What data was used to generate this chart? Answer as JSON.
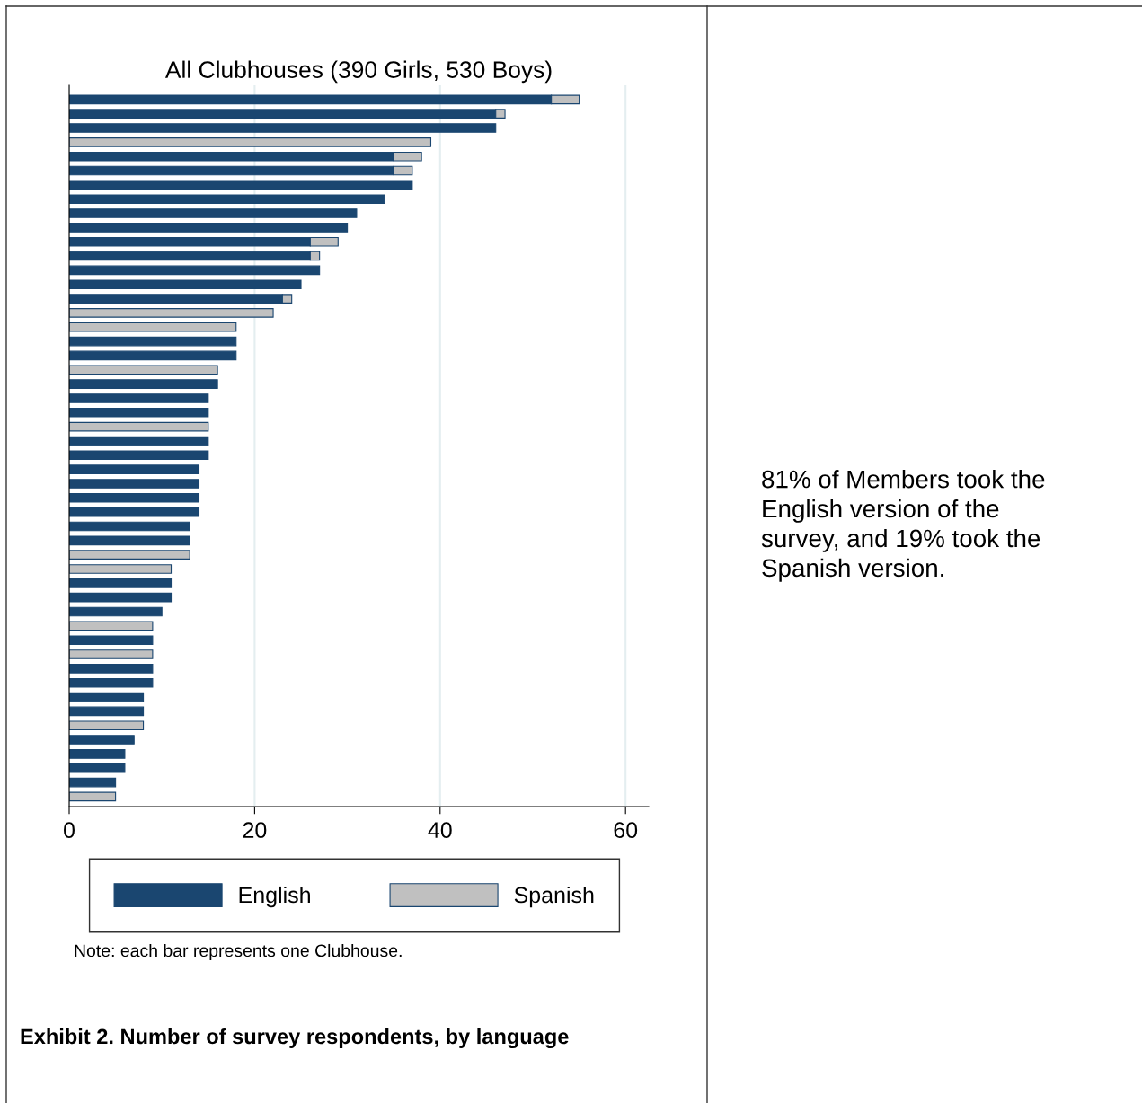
{
  "chart_data": {
    "type": "bar",
    "orientation": "horizontal",
    "stacked": true,
    "title": "All Clubhouses (390 Girls, 530 Boys)",
    "categories": [
      null,
      null,
      null,
      null,
      null,
      null,
      null,
      null,
      null,
      null,
      null,
      null,
      null,
      null,
      null,
      null,
      null,
      null,
      null,
      null,
      null,
      null,
      null,
      null,
      null,
      null,
      null,
      null,
      null,
      null,
      null,
      null,
      null,
      null,
      null,
      null,
      null,
      null,
      null,
      null,
      null,
      null,
      null,
      null,
      null,
      null,
      null,
      null,
      null,
      null
    ],
    "series": [
      {
        "name": "English",
        "color": "#1a4670",
        "values": [
          52,
          46,
          46,
          null,
          35,
          35,
          37,
          34,
          31,
          30,
          26,
          26,
          27,
          25,
          23,
          null,
          null,
          18,
          18,
          null,
          16,
          15,
          15,
          null,
          15,
          15,
          14,
          14,
          14,
          14,
          13,
          13,
          null,
          null,
          11,
          11,
          10,
          null,
          9,
          null,
          9,
          9,
          8,
          8,
          null,
          7,
          6,
          6,
          5,
          null
        ]
      },
      {
        "name": "Spanish",
        "color": "#c0c0c0",
        "values": [
          3,
          1,
          null,
          39,
          3,
          2,
          null,
          null,
          null,
          null,
          3,
          1,
          null,
          null,
          1,
          22,
          18,
          null,
          null,
          16,
          null,
          null,
          null,
          15,
          null,
          null,
          null,
          null,
          null,
          null,
          null,
          null,
          13,
          11,
          null,
          null,
          null,
          9,
          null,
          9,
          null,
          null,
          null,
          null,
          8,
          null,
          null,
          null,
          null,
          5
        ]
      }
    ],
    "xlim": [
      0,
      62.5
    ],
    "xticks": [
      0,
      20,
      40,
      60
    ],
    "grid": "x",
    "legend": "bottom",
    "tick_labels": "x",
    "annotations": [
      "Note: each bar represents one Clubhouse.",
      "Exhibit 2. Number of survey respondents, by language",
      "81% of Members took the English version of the survey, and 19% took the Spanish version."
    ]
  }
}
